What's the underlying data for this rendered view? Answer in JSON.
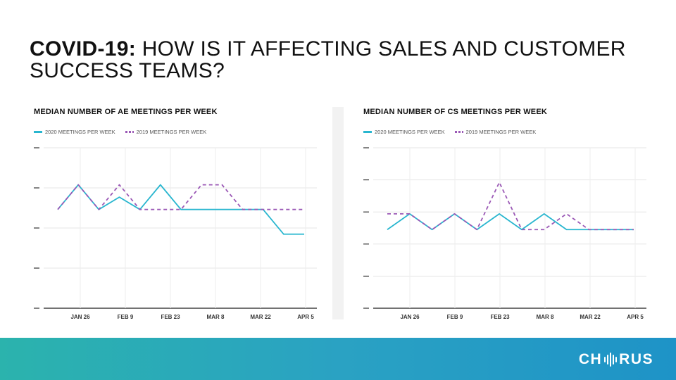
{
  "title": {
    "bold": "COVID-19:",
    "rest": " HOW IS IT AFFECTING SALES AND CUSTOMER SUCCESS TEAMS?"
  },
  "footer": {
    "logo_pre": "CH",
    "logo_post": "RUS",
    "logo_icon": "soundwave-icon"
  },
  "colors": {
    "series_2020": "#29b6cf",
    "series_2019": "#9b59b6",
    "footer_start": "#2bb3ad",
    "footer_end": "#1e93c7"
  },
  "chart_data": [
    {
      "type": "line",
      "title": "MEDIAN NUMBER OF AE MEETINGS PER WEEK",
      "x_tick_labels": [
        "JAN 26",
        "FEB 9",
        "FEB 23",
        "MAR 8",
        "MAR 22",
        "APR 5"
      ],
      "y_ticks": 5,
      "y_tick_labels": false,
      "legend_position": "top-left",
      "grid": true,
      "series": [
        {
          "name": "2020 MEETINGS PER WEEK",
          "style": "solid",
          "values": [
            3,
            3.5,
            3,
            3.25,
            3,
            3.5,
            3,
            3,
            3,
            3,
            3,
            2.5,
            2.5
          ]
        },
        {
          "name": "2019 MEETINGS PER WEEK",
          "style": "dashed",
          "values": [
            3,
            3.5,
            3,
            3.5,
            3,
            3,
            3,
            3.5,
            3.5,
            3,
            3,
            3,
            3
          ]
        }
      ],
      "ylim": [
        1,
        4.25
      ]
    },
    {
      "type": "line",
      "title": "MEDIAN NUMBER OF CS MEETINGS PER WEEK",
      "x_tick_labels": [
        "JAN 26",
        "FEB 9",
        "FEB 23",
        "MAR 8",
        "MAR 22",
        "APR 5"
      ],
      "y_ticks": 6,
      "y_tick_labels": false,
      "legend_position": "top-left",
      "grid": true,
      "series": [
        {
          "name": "2020 MEETINGS PER WEEK",
          "style": "solid",
          "values": [
            3,
            3.5,
            3,
            3.5,
            3,
            3.5,
            3,
            3.5,
            3,
            3,
            3,
            3
          ]
        },
        {
          "name": "2019 MEETINGS PER WEEK",
          "style": "dashed",
          "values": [
            3.5,
            3.5,
            3,
            3.5,
            3,
            4.5,
            3,
            3,
            3.5,
            3,
            3,
            3
          ]
        }
      ],
      "ylim": [
        0.5,
        5.6
      ]
    }
  ]
}
